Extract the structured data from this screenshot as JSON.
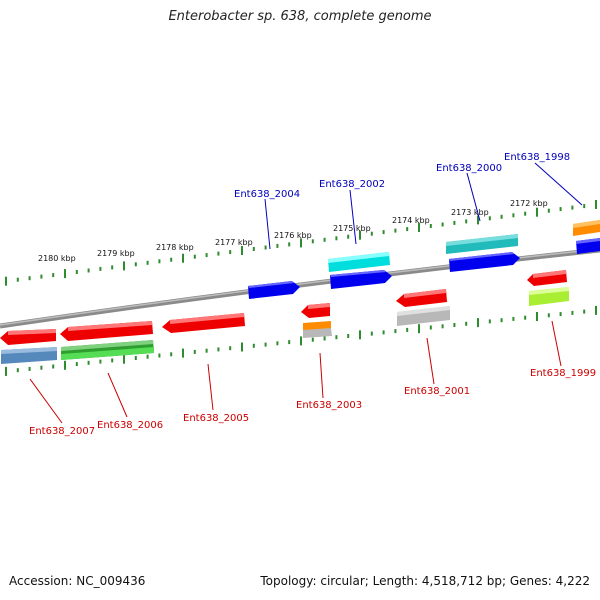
{
  "title": "Enterobacter sp. 638, complete genome",
  "footer": {
    "accession": "Accession: NC_009436",
    "summary": "Topology: circular; Length: 4,518,712 bp; Genes: 4,222"
  },
  "scale_labels": [
    "2180 kbp",
    "2179 kbp",
    "2178 kbp",
    "2177 kbp",
    "2176 kbp",
    "2175 kbp",
    "2174 kbp",
    "2173 kbp",
    "2172 kbp"
  ],
  "gene_labels_top": [
    "Ent638_2004",
    "Ent638_2002",
    "Ent638_2000",
    "Ent638_1998"
  ],
  "gene_labels_bottom": [
    "Ent638_2007",
    "Ent638_2006",
    "Ent638_2005",
    "Ent638_2003",
    "Ent638_2001",
    "Ent638_1999"
  ],
  "colors": {
    "background": "#ffffff",
    "backbone": "#8c8c8c",
    "tick": "#2e8b2e",
    "label_top": "#0000bb",
    "label_bottom": "#cc0000",
    "gene_red": "#ee0000",
    "gene_blue": "#0000ee",
    "gene_cyan": "#00dddd",
    "gene_teal": "#22bbbb",
    "gene_orange": "#ff8c00",
    "gene_green": "#2e9e2e",
    "gene_lime": "#aaee33",
    "gene_steel": "#5588bb",
    "gene_gray": "#b8b8b8"
  }
}
